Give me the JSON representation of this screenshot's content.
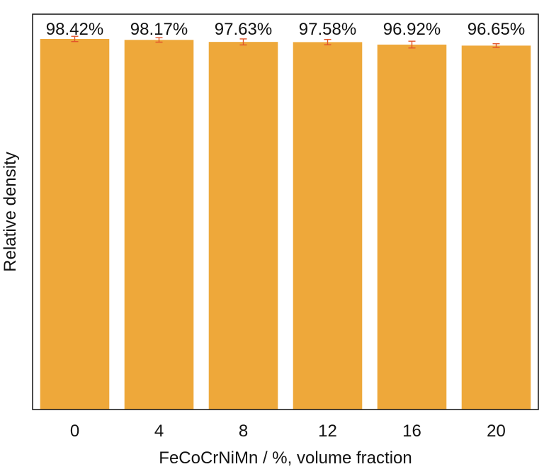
{
  "chart_data": {
    "type": "bar",
    "title": "",
    "xlabel": "FeCoCrNiMn / %, volume fraction",
    "ylabel": "Relative density",
    "categories": [
      "0",
      "4",
      "8",
      "12",
      "16",
      "20"
    ],
    "values": [
      98.42,
      98.17,
      97.63,
      97.58,
      96.92,
      96.65
    ],
    "errors": [
      0.7,
      0.6,
      0.8,
      0.7,
      0.9,
      0.5
    ],
    "data_labels": [
      "98.42%",
      "98.17%",
      "97.63%",
      "97.58%",
      "96.92%",
      "96.65%"
    ],
    "ylim": [
      0,
      105
    ],
    "y_ticks_shown": false,
    "grid": false,
    "legend": "none",
    "colors": {
      "bar": "#EEA83A",
      "error_bar": "#E2552B",
      "axis": "#111111"
    }
  }
}
